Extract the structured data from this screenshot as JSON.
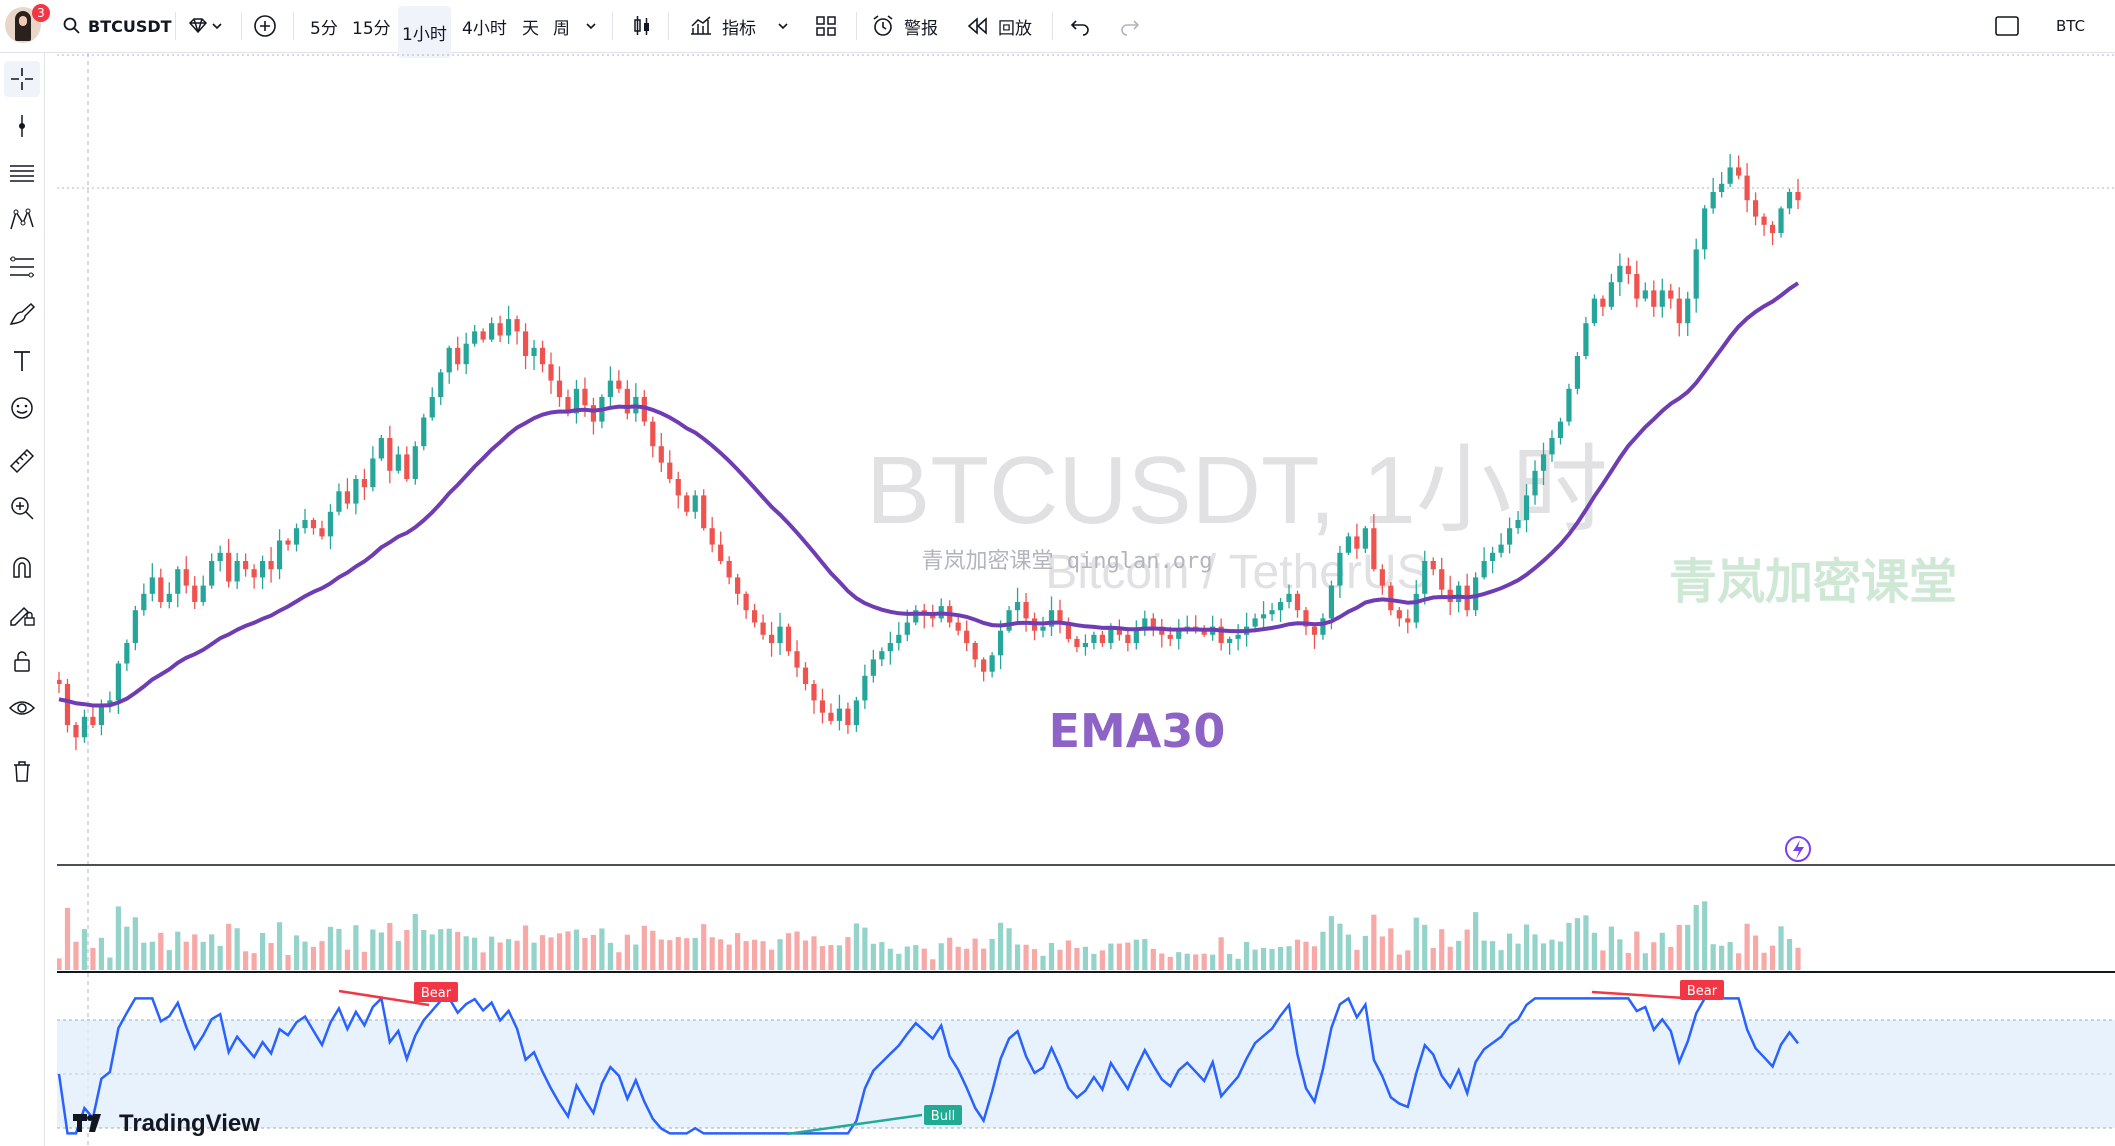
{
  "toolbar": {
    "notification_count": "3",
    "symbol": "BTCUSDT",
    "timeframes": [
      "5分",
      "15分",
      "1小时",
      "4小时",
      "天",
      "周"
    ],
    "active_timeframe": "1小时",
    "indicators_label": "指标",
    "alert_label": "警报",
    "replay_label": "回放",
    "currency": "BTC"
  },
  "left_tools": [
    "crosshair-icon",
    "cursor-dot-icon",
    "horizontal-lines-icon",
    "pattern-icon",
    "fib-icon",
    "brush-icon",
    "text-icon",
    "emoji-icon",
    "ruler-icon",
    "zoom-in-icon",
    "magnet-icon",
    "lock-drawing-icon",
    "lock-icon",
    "eye-icon",
    "trash-icon"
  ],
  "watermark": {
    "title": "BTCUSDT, 1小时",
    "subtitle": "Bitcoin / TetherUS",
    "source": "青岚加密课堂 qinglan.org",
    "brand_cn": "青岚加密课堂"
  },
  "ema_label": "EMA30",
  "rsi_labels": {
    "bear": "Bear",
    "bull": "Bull"
  },
  "logo_text": "TradingView",
  "colors": {
    "up": "#26a69a",
    "down": "#ef5350",
    "ema": "#6f3db3",
    "rsi": "#2962ff",
    "bear": "#f23645",
    "bull": "#22ab94"
  },
  "chart_data": {
    "type": "candlestick",
    "ema_period": 30,
    "close_path": [
      40,
      30,
      27,
      32,
      30,
      35,
      36,
      45,
      50,
      58,
      62,
      66,
      60,
      62,
      68,
      64,
      60,
      64,
      70,
      72,
      65,
      70,
      68,
      66,
      70,
      68,
      75,
      74,
      78,
      80,
      78,
      76,
      82,
      87,
      84,
      90,
      88,
      95,
      100,
      92,
      96,
      90,
      98,
      105,
      110,
      116,
      122,
      118,
      123,
      126,
      124,
      128,
      125,
      129,
      126,
      120,
      122,
      118,
      114,
      110,
      106,
      112,
      108,
      104,
      110,
      114,
      112,
      106,
      110,
      104,
      98,
      94,
      90,
      86,
      82,
      86,
      78,
      74,
      70,
      66,
      62,
      58,
      55,
      52,
      50,
      54,
      48,
      44,
      40,
      36,
      33,
      31,
      34,
      30,
      36,
      42,
      46,
      48,
      50,
      52,
      55,
      58,
      57,
      56,
      59,
      55,
      53,
      50,
      46,
      43,
      47,
      53,
      58,
      60,
      56,
      53,
      54,
      58,
      55,
      51,
      49,
      50,
      52,
      50,
      54,
      52,
      50,
      53,
      56,
      54,
      52,
      51,
      53,
      54,
      53,
      52,
      54,
      50,
      51,
      52,
      54,
      56,
      57,
      58,
      60,
      62,
      58,
      54,
      52,
      56,
      64,
      72,
      76,
      73,
      78,
      68,
      64,
      58,
      56,
      55,
      62,
      70,
      68,
      63,
      60,
      64,
      58,
      66,
      70,
      72,
      74,
      78,
      80,
      86,
      92,
      96,
      100,
      104,
      112,
      120,
      128,
      134,
      132,
      138,
      142,
      140,
      134,
      136,
      132,
      136,
      134,
      128,
      134,
      146,
      156,
      160,
      162,
      166,
      164,
      158,
      154,
      152,
      150,
      156,
      160,
      158
    ]
  }
}
